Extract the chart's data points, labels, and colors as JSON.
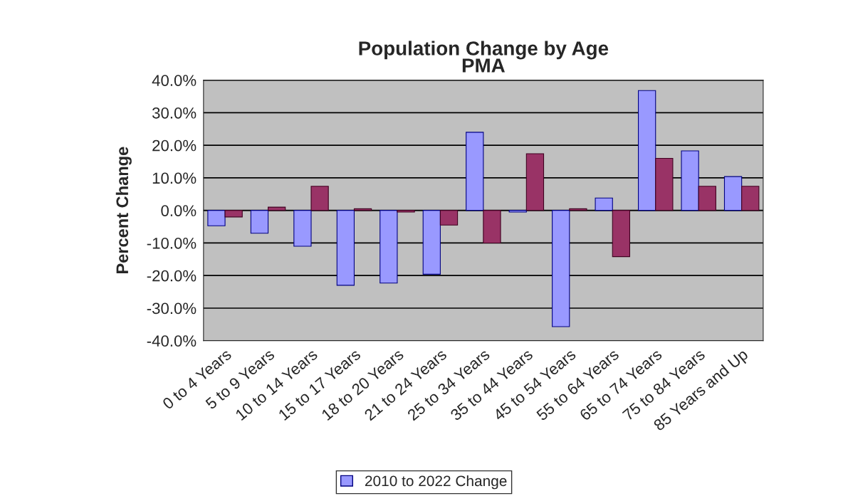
{
  "chart_data": {
    "type": "bar",
    "title": "Population Change by Age\nPMA",
    "ylabel": "Percent Change",
    "categories": [
      "0 to 4 Years",
      "5 to 9 Years",
      "10 to 14 Years",
      "15 to 17 Years",
      "18 to 20 Years",
      "21 to 24 Years",
      "25 to 34 Years",
      "35 to 44 Years",
      "45 to 54 Years",
      "55 to 64 Years",
      "65 to 74 Years",
      "75 to 84 Years",
      "85 Years and Up"
    ],
    "series": [
      {
        "name": "2010 to 2022 Change",
        "color": "#9999ff",
        "values": [
          -4.7,
          -7,
          -11,
          -23,
          -22.3,
          -19.6,
          24,
          -0.5,
          -35.7,
          3.8,
          36.8,
          18.3,
          10.4
        ]
      },
      {
        "color": "#993366",
        "values": [
          -2,
          1,
          7.4,
          0.5,
          -0.5,
          -4.5,
          -10,
          17.4,
          0.5,
          -14.2,
          16,
          7.4,
          7.4
        ]
      }
    ],
    "ylim": [
      -40,
      40
    ],
    "yticks": [
      {
        "value": -40,
        "label": "-40.0%"
      },
      {
        "value": -30,
        "label": "-30.0%"
      },
      {
        "value": -20,
        "label": "-20.0%"
      },
      {
        "value": -10,
        "label": "-10.0%"
      },
      {
        "value": 0,
        "label": "0.0%"
      },
      {
        "value": 10,
        "label": "10.0%"
      },
      {
        "value": 20,
        "label": "20.0%"
      },
      {
        "value": 30,
        "label": "30.0%"
      },
      {
        "value": 40,
        "label": "40.0%"
      }
    ],
    "grid": "y",
    "legend": "bottom"
  }
}
